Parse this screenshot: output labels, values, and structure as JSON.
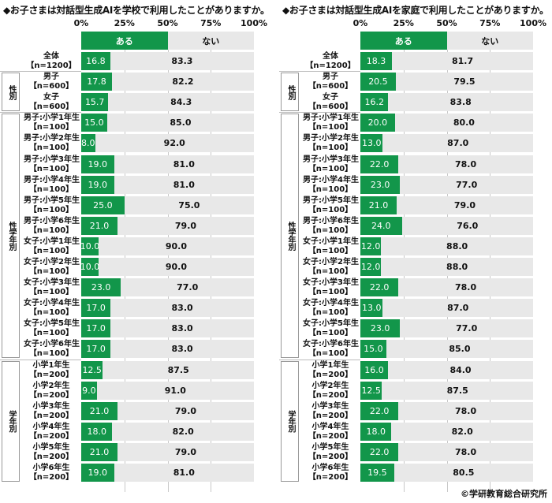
{
  "colors": {
    "yes": "#12964a",
    "no": "#e8e8e8",
    "text": "#111111"
  },
  "credit": "©学研教育総合研究所",
  "axis_ticks": [
    "0%",
    "25%",
    "50%",
    "75%",
    "100%"
  ],
  "legend": {
    "yes": "ある",
    "no": "ない"
  },
  "groups": {
    "sex": "性別",
    "sex_grade": "性学年別",
    "grade": "学年別"
  },
  "chart_data": [
    {
      "type": "bar",
      "orientation": "horizontal-stacked-100",
      "title": "◆お子さまは対話型生成AIを学校で利用したことがありますか。",
      "xlabel": "",
      "ylabel": "",
      "xlim": [
        0,
        100
      ],
      "legend": [
        "ある",
        "ない"
      ],
      "categories": [
        {
          "name": "全体",
          "n": "【n=1200】",
          "group": ""
        },
        {
          "name": "男子",
          "n": "【n=600】",
          "group": "性別"
        },
        {
          "name": "女子",
          "n": "【n=600】",
          "group": "性別"
        },
        {
          "name": "男子:小学1年生",
          "n": "【n=100】",
          "group": "性学年別"
        },
        {
          "name": "男子:小学2年生",
          "n": "【n=100】",
          "group": "性学年別"
        },
        {
          "name": "男子:小学3年生",
          "n": "【n=100】",
          "group": "性学年別"
        },
        {
          "name": "男子:小学4年生",
          "n": "【n=100】",
          "group": "性学年別"
        },
        {
          "name": "男子:小学5年生",
          "n": "【n=100】",
          "group": "性学年別"
        },
        {
          "name": "男子:小学6年生",
          "n": "【n=100】",
          "group": "性学年別"
        },
        {
          "name": "女子:小学1年生",
          "n": "【n=100】",
          "group": "性学年別"
        },
        {
          "name": "女子:小学2年生",
          "n": "【n=100】",
          "group": "性学年別"
        },
        {
          "name": "女子:小学3年生",
          "n": "【n=100】",
          "group": "性学年別"
        },
        {
          "name": "女子:小学4年生",
          "n": "【n=100】",
          "group": "性学年別"
        },
        {
          "name": "女子:小学5年生",
          "n": "【n=100】",
          "group": "性学年別"
        },
        {
          "name": "女子:小学6年生",
          "n": "【n=100】",
          "group": "性学年別"
        },
        {
          "name": "小学1年生",
          "n": "【n=200】",
          "group": "学年別"
        },
        {
          "name": "小学2年生",
          "n": "【n=200】",
          "group": "学年別"
        },
        {
          "name": "小学3年生",
          "n": "【n=200】",
          "group": "学年別"
        },
        {
          "name": "小学4年生",
          "n": "【n=200】",
          "group": "学年別"
        },
        {
          "name": "小学5年生",
          "n": "【n=200】",
          "group": "学年別"
        },
        {
          "name": "小学6年生",
          "n": "【n=200】",
          "group": "学年別"
        }
      ],
      "series": [
        {
          "name": "ある",
          "values": [
            "16.8",
            "17.8",
            "15.7",
            "15.0",
            "8.0",
            "19.0",
            "19.0",
            "25.0",
            "21.0",
            "10.0",
            "10.0",
            "23.0",
            "17.0",
            "17.0",
            "17.0",
            "12.5",
            "9.0",
            "21.0",
            "18.0",
            "21.0",
            "19.0"
          ]
        },
        {
          "name": "ない",
          "values": [
            "83.3",
            "82.2",
            "84.3",
            "85.0",
            "92.0",
            "81.0",
            "81.0",
            "75.0",
            "79.0",
            "90.0",
            "90.0",
            "77.0",
            "83.0",
            "83.0",
            "83.0",
            "87.5",
            "91.0",
            "79.0",
            "82.0",
            "79.0",
            "81.0"
          ]
        }
      ]
    },
    {
      "type": "bar",
      "orientation": "horizontal-stacked-100",
      "title": "◆お子さまは対話型生成AIを家庭で利用したことがありますか。",
      "xlabel": "",
      "ylabel": "",
      "xlim": [
        0,
        100
      ],
      "legend": [
        "ある",
        "ない"
      ],
      "categories": [
        {
          "name": "全体",
          "n": "【n=1200】",
          "group": ""
        },
        {
          "name": "男子",
          "n": "【n=600】",
          "group": "性別"
        },
        {
          "name": "女子",
          "n": "【n=600】",
          "group": "性別"
        },
        {
          "name": "男子:小学1年生",
          "n": "【n=100】",
          "group": "性学年別"
        },
        {
          "name": "男子:小学2年生",
          "n": "【n=100】",
          "group": "性学年別"
        },
        {
          "name": "男子:小学3年生",
          "n": "【n=100】",
          "group": "性学年別"
        },
        {
          "name": "男子:小学4年生",
          "n": "【n=100】",
          "group": "性学年別"
        },
        {
          "name": "男子:小学5年生",
          "n": "【n=100】",
          "group": "性学年別"
        },
        {
          "name": "男子:小学6年生",
          "n": "【n=100】",
          "group": "性学年別"
        },
        {
          "name": "女子:小学1年生",
          "n": "【n=100】",
          "group": "性学年別"
        },
        {
          "name": "女子:小学2年生",
          "n": "【n=100】",
          "group": "性学年別"
        },
        {
          "name": "女子:小学3年生",
          "n": "【n=100】",
          "group": "性学年別"
        },
        {
          "name": "女子:小学4年生",
          "n": "【n=100】",
          "group": "性学年別"
        },
        {
          "name": "女子:小学5年生",
          "n": "【n=100】",
          "group": "性学年別"
        },
        {
          "name": "女子:小学6年生",
          "n": "【n=100】",
          "group": "性学年別"
        },
        {
          "name": "小学1年生",
          "n": "【n=200】",
          "group": "学年別"
        },
        {
          "name": "小学2年生",
          "n": "【n=200】",
          "group": "学年別"
        },
        {
          "name": "小学3年生",
          "n": "【n=200】",
          "group": "学年別"
        },
        {
          "name": "小学4年生",
          "n": "【n=200】",
          "group": "学年別"
        },
        {
          "name": "小学5年生",
          "n": "【n=200】",
          "group": "学年別"
        },
        {
          "name": "小学6年生",
          "n": "【n=200】",
          "group": "学年別"
        }
      ],
      "series": [
        {
          "name": "ある",
          "values": [
            "18.3",
            "20.5",
            "16.2",
            "20.0",
            "13.0",
            "22.0",
            "23.0",
            "21.0",
            "24.0",
            "12.0",
            "12.0",
            "22.0",
            "13.0",
            "23.0",
            "15.0",
            "16.0",
            "12.5",
            "22.0",
            "18.0",
            "22.0",
            "19.5"
          ]
        },
        {
          "name": "ない",
          "values": [
            "81.7",
            "79.5",
            "83.8",
            "80.0",
            "87.0",
            "78.0",
            "77.0",
            "79.0",
            "76.0",
            "88.0",
            "88.0",
            "78.0",
            "87.0",
            "77.0",
            "85.0",
            "84.0",
            "87.5",
            "78.0",
            "82.0",
            "78.0",
            "80.5"
          ]
        }
      ]
    }
  ]
}
